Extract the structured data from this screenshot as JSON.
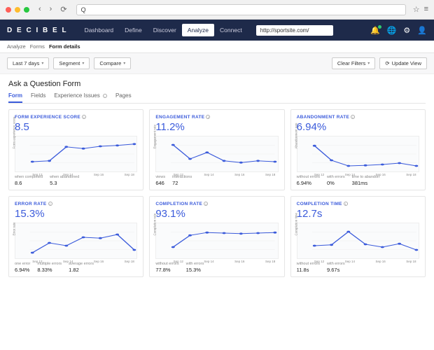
{
  "browser": {
    "addr_prefix": "Q",
    "star": "☆",
    "menu": "≡"
  },
  "topnav": {
    "logo": "D E C I B E L",
    "items": [
      "Dashboard",
      "Define",
      "Discover",
      "Analyze",
      "Connect"
    ],
    "active_index": 3,
    "url": "http://sportsite.com/"
  },
  "breadcrumb": {
    "items": [
      "Analyze",
      "Forms",
      "Form details"
    ]
  },
  "filters": {
    "range": "Last 7 days",
    "segment": "Segment",
    "compare": "Compare",
    "clear": "Clear Filters",
    "update": "Update View"
  },
  "section": {
    "title": "Ask a Question Form"
  },
  "tabs": {
    "items": [
      "Form",
      "Fields",
      "Experience Issues",
      "Pages"
    ],
    "active_index": 0
  },
  "chart_style": {
    "line_color": "#3b5bdb",
    "marker_color": "#3b5bdb",
    "grid_color": "#eeeeee",
    "bg_color": "#fafbfc",
    "line_width": 1,
    "marker_radius": 1.4,
    "xticks": [
      "Sep 12",
      "Sep 14",
      "Sep 16",
      "Sep 18"
    ]
  },
  "cards": [
    {
      "title": "FORM EXPERIENCE SCORE",
      "value": "8.5",
      "ylabel": "Form experience score",
      "points": [
        0.25,
        0.28,
        0.78,
        0.72,
        0.8,
        0.83,
        0.88
      ],
      "stats": [
        {
          "label": "when completed",
          "value": "8.6"
        },
        {
          "label": "when abandoned",
          "value": "5.3"
        }
      ]
    },
    {
      "title": "ENGAGEMENT RATE",
      "value": "11.2%",
      "ylabel": "Engagement rate",
      "points": [
        0.85,
        0.35,
        0.58,
        0.28,
        0.22,
        0.28,
        0.25
      ],
      "stats": [
        {
          "label": "views",
          "value": "646"
        },
        {
          "label": "interactions",
          "value": "72"
        }
      ]
    },
    {
      "title": "ABANDONMENT RATE",
      "value": "6.94%",
      "ylabel": "Abandonment rate",
      "points": [
        0.82,
        0.3,
        0.1,
        0.12,
        0.15,
        0.2,
        0.1
      ],
      "stats": [
        {
          "label": "without errors",
          "value": "6.94%"
        },
        {
          "label": "with errors",
          "value": "0%"
        },
        {
          "label": "time to abandon",
          "value": "381ms"
        }
      ]
    },
    {
      "title": "ERROR RATE",
      "value": "15.3%",
      "ylabel": "Error rate",
      "points": [
        0.1,
        0.45,
        0.35,
        0.65,
        0.62,
        0.75,
        0.2
      ],
      "stats": [
        {
          "label": "one error",
          "value": "6.94%"
        },
        {
          "label": "multiple errors",
          "value": "8.33%"
        },
        {
          "label": "average errors",
          "value": "1.82"
        }
      ]
    },
    {
      "title": "COMPLETION RATE",
      "value": "93.1%",
      "ylabel": "Completion rate",
      "points": [
        0.3,
        0.72,
        0.82,
        0.8,
        0.78,
        0.8,
        0.82
      ],
      "stats": [
        {
          "label": "without errors",
          "value": "77.8%"
        },
        {
          "label": "with errors",
          "value": "15.3%"
        }
      ]
    },
    {
      "title": "COMPLETION TIME",
      "value": "12.7s",
      "ylabel": "Completion time",
      "points": [
        0.35,
        0.38,
        0.85,
        0.4,
        0.3,
        0.42,
        0.2
      ],
      "stats": [
        {
          "label": "without errors",
          "value": "11.8s"
        },
        {
          "label": "with errors",
          "value": "9.67s"
        }
      ]
    }
  ]
}
